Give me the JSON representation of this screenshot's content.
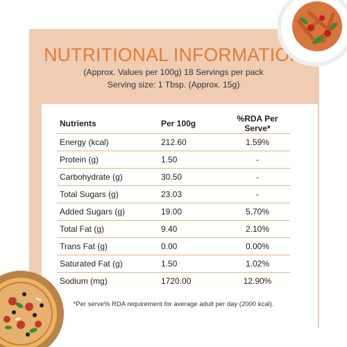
{
  "title": "NUTRITIONAL INFORMATION",
  "subtitle_1": "(Approx. Values per 100g) 18 Servings per pack",
  "subtitle_2": "Serving size: 1 Tbsp. (Approx. 15g)",
  "headers": [
    "Nutrients",
    "Per 100g",
    "%RDA Per Serve*"
  ],
  "rows": [
    [
      "Energy (kcal)",
      "212.60",
      "1.59%"
    ],
    [
      "Protein (g)",
      "1.50",
      "-"
    ],
    [
      "Carbohydrate (g)",
      "30.50",
      "-"
    ],
    [
      "Total Sugars (g)",
      "23.03",
      "-"
    ],
    [
      "Added Sugars (g)",
      "19.00",
      "5.70%"
    ],
    [
      "Total Fat (g)",
      "9.40",
      "2.10%"
    ],
    [
      "Trans Fat (g)",
      "0.00",
      "0.00%"
    ],
    [
      "Saturated Fat (g)",
      "1.50",
      "1.02%"
    ],
    [
      "Sodium (mg)",
      "1720.00",
      "12.90%"
    ]
  ],
  "footnote": "*Per serve% RDA requirement for average adult per day (2000 kcal).",
  "colors": {
    "accent": "#e07d33",
    "card": "#f0ccb3",
    "rule": "#e6b08c"
  },
  "images": [
    "pasta-plate",
    "pizza"
  ]
}
